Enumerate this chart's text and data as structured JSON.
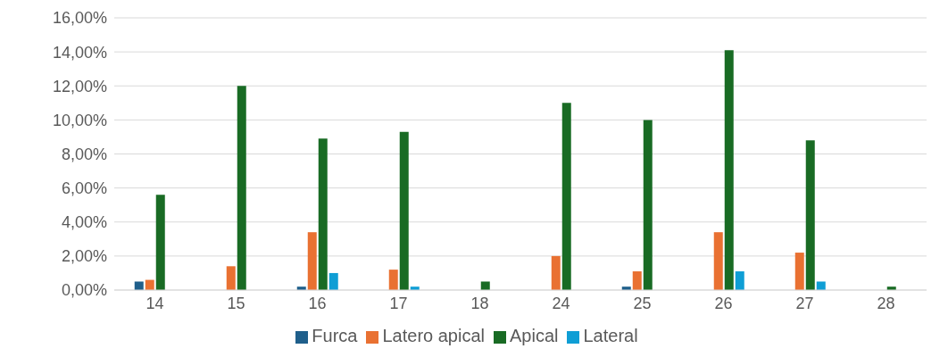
{
  "chart_data": {
    "type": "bar",
    "categories": [
      "14",
      "15",
      "16",
      "17",
      "18",
      "24",
      "25",
      "26",
      "27",
      "28"
    ],
    "series": [
      {
        "name": "Furca",
        "color": "#1f5f8b",
        "values": [
          0.5,
          null,
          0.2,
          null,
          null,
          null,
          0.2,
          null,
          null,
          null
        ]
      },
      {
        "name": "Latero apical",
        "color": "#e97132",
        "values": [
          0.6,
          1.4,
          3.4,
          1.2,
          null,
          2.0,
          1.1,
          3.4,
          2.2,
          null
        ]
      },
      {
        "name": "Apical",
        "color": "#196b24",
        "values": [
          5.6,
          12.0,
          8.9,
          9.3,
          0.5,
          11.0,
          10.0,
          14.1,
          8.8,
          0.2
        ]
      },
      {
        "name": "Lateral",
        "color": "#0f9ed5",
        "values": [
          null,
          null,
          1.0,
          0.2,
          null,
          null,
          null,
          1.1,
          0.5,
          null
        ]
      }
    ],
    "ylim": [
      0,
      16
    ],
    "yticks": [
      {
        "value": 0,
        "label": "0,00%"
      },
      {
        "value": 2,
        "label": "2,00%"
      },
      {
        "value": 4,
        "label": "4,00%"
      },
      {
        "value": 6,
        "label": "6,00%"
      },
      {
        "value": 8,
        "label": "8,00%"
      },
      {
        "value": 10,
        "label": "10,00%"
      },
      {
        "value": 12,
        "label": "12,00%"
      },
      {
        "value": 14,
        "label": "14,00%"
      },
      {
        "value": 16,
        "label": "16,00%"
      }
    ],
    "grid": "y",
    "legend": "bottom"
  }
}
